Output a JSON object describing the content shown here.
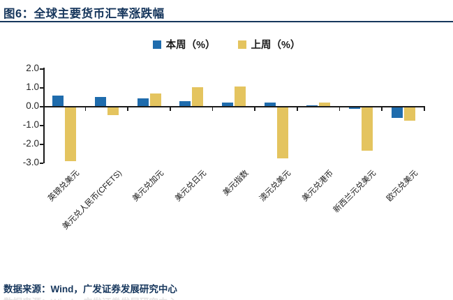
{
  "figure": {
    "title": "图6：全球主要货币汇率涨跌幅",
    "source": "数据来源：Wind，广发证券发展研究中心"
  },
  "colors": {
    "accent_navy": "#16365C",
    "this_week_blue": "#1F6CAD",
    "last_week_gold": "#E4C45F",
    "axis_black": "#1a1a1a"
  },
  "chart_data": {
    "type": "bar",
    "title": "全球主要货币汇率涨跌幅",
    "categories": [
      "英镑兑美元",
      "美元兑人民币(CFETS)",
      "美元兑加元",
      "美元兑日元",
      "美元指数",
      "澳元兑美元",
      "美元兑港币",
      "新西兰元兑美元",
      "欧元兑美元"
    ],
    "series": [
      {
        "name": "本周（%）",
        "color": "#1F6CAD",
        "values": [
          0.55,
          0.5,
          0.4,
          0.25,
          0.2,
          0.2,
          0.03,
          -0.07,
          -0.55
        ]
      },
      {
        "name": "上周（%）",
        "color": "#E4C45F",
        "values": [
          -2.85,
          -0.4,
          0.65,
          1.0,
          1.05,
          -2.7,
          0.2,
          -2.3,
          -0.7
        ]
      }
    ],
    "xlabel": "",
    "ylabel": "",
    "ylim": [
      -3.0,
      2.0
    ],
    "ytick_labels": [
      "2.0",
      "1.0",
      "0.0",
      "-1.0",
      "-2.0",
      "-3.0"
    ],
    "grid": false,
    "legend_position": "top-center",
    "category_label_rotation_deg": 45
  }
}
